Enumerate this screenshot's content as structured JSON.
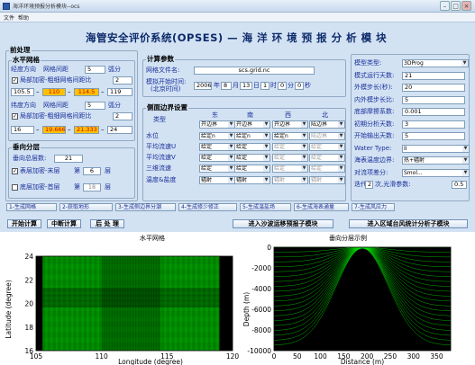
{
  "window": {
    "title": "海洋环境预报分析模块--ocs",
    "menu": [
      "文件",
      "帮助"
    ]
  },
  "app_title": "海管安全评价系统(OPSES) — 海 洋 环 境 预 报 分 析 模 块",
  "pre": {
    "title": "前处理",
    "hgrid": {
      "title": "水平网格",
      "lon_label": "经度方向",
      "lon_interval_label": "网格间距",
      "lon_interval": "5",
      "lon_unit": "弧分",
      "lon_refine_label": "局部加密-粗细网格间距比",
      "lon_refine": "2",
      "lon_range": [
        "105.5",
        "110",
        "114.5",
        "119"
      ],
      "lat_label": "纬度方向",
      "lat_interval_label": "网格间距",
      "lat_interval": "5",
      "lat_unit": "弧分",
      "lat_refine_label": "局部加密-粗细网格间距比",
      "lat_refine": "2",
      "lat_range": [
        "16",
        "19.666",
        "21.333",
        "24"
      ]
    },
    "vlayer": {
      "title": "垂向分层",
      "total_label": "垂向总层数:",
      "total": "21",
      "surf_label": "表层加密-末层",
      "surf_pre": "第",
      "surf_val": "6",
      "surf_post": "层",
      "bot_label": "底层加密-首层",
      "bot_pre": "第",
      "bot_val": "18",
      "bot_post": "层"
    }
  },
  "calc": {
    "title": "计算参数",
    "grid_file_label": "网格文件名:",
    "grid_file": "scs.grid.nc",
    "start_label": "模拟开始时间:",
    "start_label2": "(北京时间)",
    "year": "2006",
    "year_u": "年",
    "month": "8",
    "month_u": "月",
    "day": "13",
    "day_u": "日",
    "hour": "1",
    "hour_u": "时",
    "min": "0",
    "min_u": "分",
    "sec": "0",
    "sec_u": "秒"
  },
  "bc": {
    "title": "侧面边界设置",
    "type_label": "类型",
    "headers": [
      "东",
      "南",
      "西",
      "北"
    ],
    "rows": [
      {
        "label": "类型",
        "vals": [
          "开边界",
          "开边界",
          "开边界",
          "陆边界"
        ],
        "dis": [
          false,
          false,
          false,
          false
        ]
      },
      {
        "label": "水位",
        "vals": [
          "给定n",
          "给定n",
          "给定n",
          "陆边界"
        ],
        "dis": [
          false,
          false,
          false,
          true
        ]
      },
      {
        "label": "平均流速U",
        "vals": [
          "给定",
          "给定",
          "给定",
          "给定"
        ],
        "dis": [
          false,
          false,
          true,
          true
        ]
      },
      {
        "label": "平均流速V",
        "vals": [
          "给定",
          "给定",
          "给定",
          "给定"
        ],
        "dis": [
          false,
          false,
          true,
          true
        ]
      },
      {
        "label": "三维流速",
        "vals": [
          "给定",
          "给定",
          "给定",
          "给定"
        ],
        "dis": [
          false,
          false,
          true,
          true
        ]
      },
      {
        "label": "温度&盐度",
        "vals": [
          "辐射",
          "辐射",
          "辐射",
          "辐射"
        ],
        "dis": [
          false,
          false,
          true,
          true
        ]
      }
    ]
  },
  "model": {
    "type_label": "模型类型:",
    "type": "3DProg",
    "days_label": "模式运行天数:",
    "days": "21",
    "ext_label": "外模步长(秒):",
    "ext": "20",
    "int_label": "内外模步长比:",
    "int": "5",
    "rough_label": "底部摩擦系数:",
    "rough": "0.001",
    "init_label": "初期分析天数:",
    "init": "3",
    "out_label": "开始输出天数:",
    "out": "5",
    "water_label": "Water Type:",
    "water": "II",
    "sst_label": "海表温度边界:",
    "sst": "热+辐射",
    "adv_label": "对流项差分:",
    "adv": "Smol...",
    "iter_pre": "迭代",
    "iter": "2",
    "iter_post": "次,光滑参数:",
    "smooth": "0.5"
  },
  "steps": [
    "1-生成网格",
    "2-获取地形",
    "3-生成侧边界分潮",
    "4-生成修少修正",
    "5-生成温盐场",
    "6-生成海表通量",
    "7-生成风应力"
  ],
  "actions": {
    "start": "开始计算",
    "stop": "中断计算",
    "post": "后 处 理",
    "sand": "进入沙波运移预报子模块",
    "stat": "进入区域台风统计分析子模块"
  },
  "plot_h": {
    "title": "水平网格",
    "xlabel": "Longitude (degree)",
    "ylabel": "Latitude (degree)",
    "xticks": [
      "105",
      "110",
      "115",
      "120"
    ],
    "yticks": [
      "16",
      "18",
      "20",
      "22",
      "24"
    ]
  },
  "plot_v": {
    "title": "垂向分层示例",
    "xlabel": "Distance (m)",
    "ylabel": "Depth (m)",
    "xticks": [
      "0",
      "50",
      "100",
      "150",
      "200",
      "250",
      "300",
      "350"
    ],
    "yticks": [
      "0",
      "-2000",
      "-4000",
      "-6000",
      "-8000",
      "-10000"
    ]
  },
  "colors": {
    "grid_green": "#00e000",
    "grid_black": "#000000"
  }
}
